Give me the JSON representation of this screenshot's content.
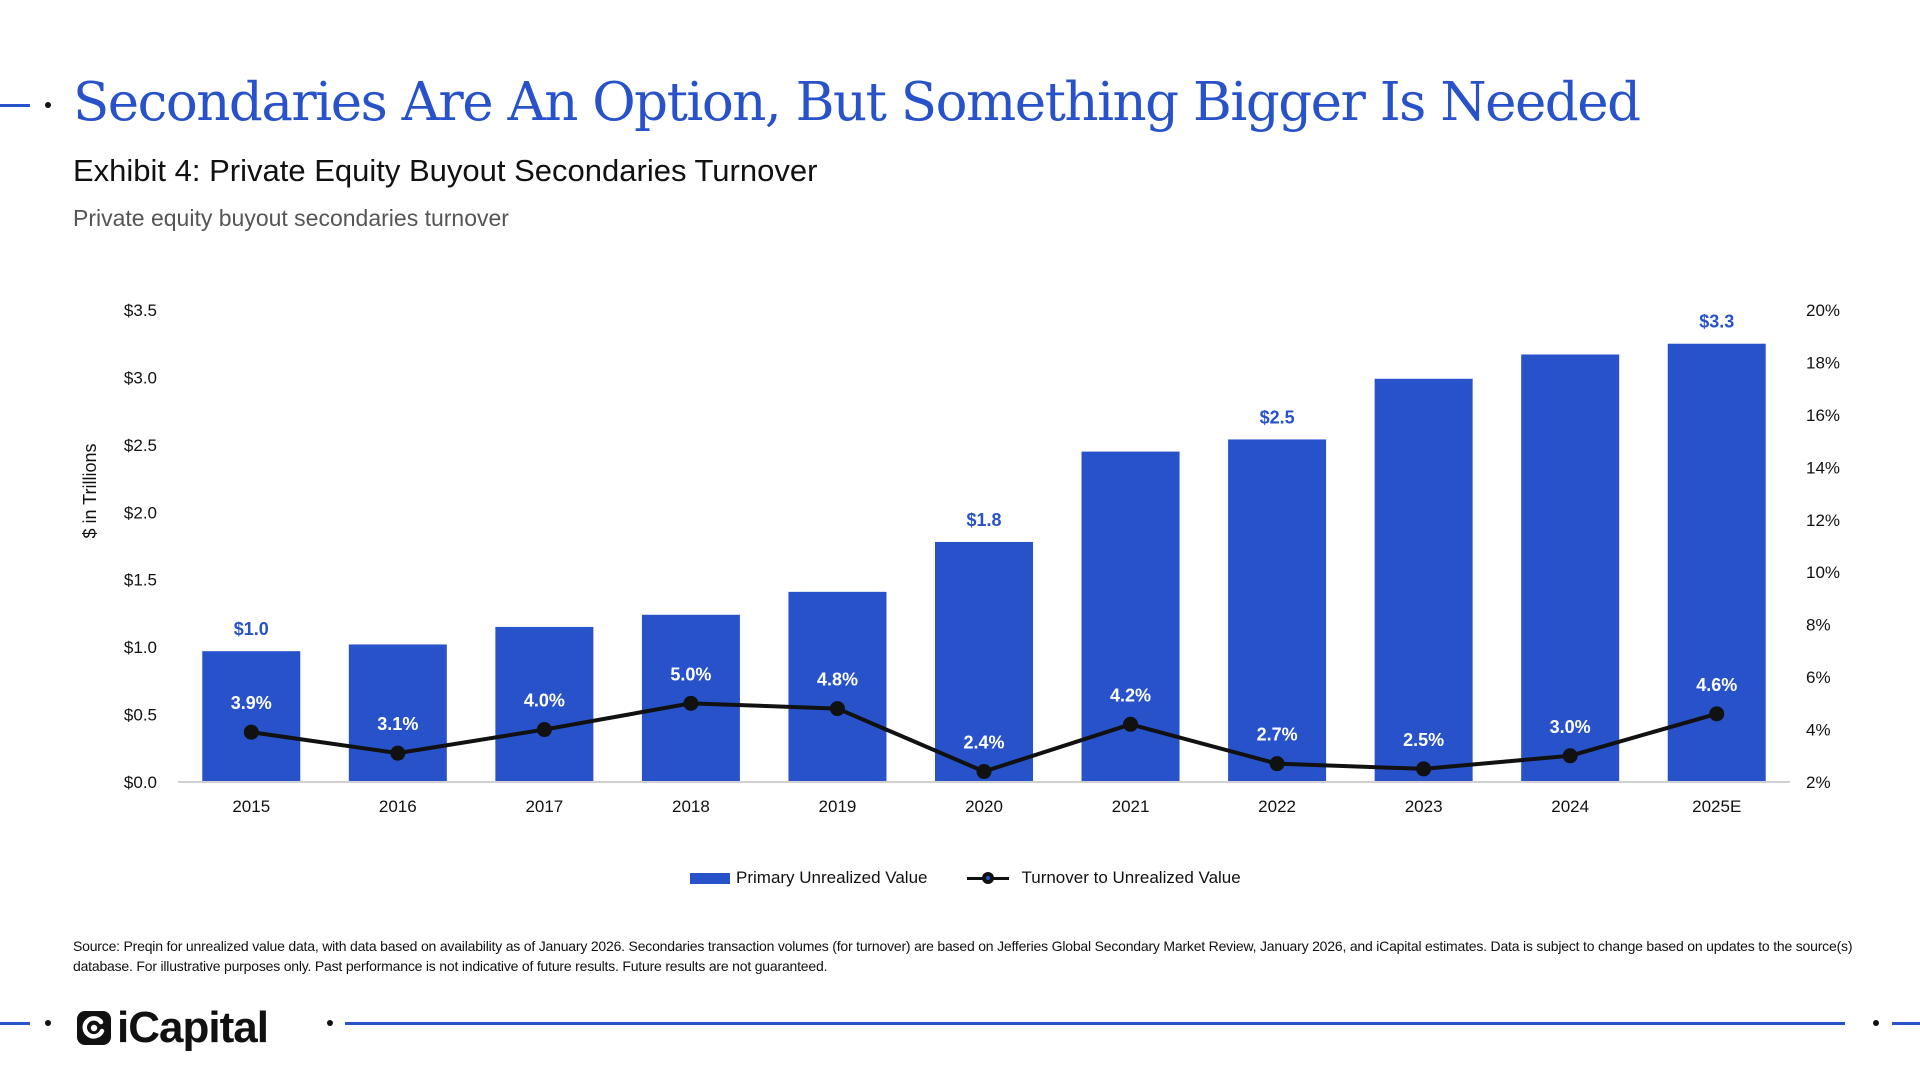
{
  "header": {
    "title": "Secondaries Are An Option, But Something Bigger Is Needed",
    "exhibit": "Exhibit 4: Private Equity Buyout Secondaries Turnover",
    "subtitle": "Private equity buyout secondaries turnover"
  },
  "chart_data": {
    "type": "bar",
    "categories": [
      "2015",
      "2016",
      "2017",
      "2018",
      "2019",
      "2020",
      "2021",
      "2022",
      "2023",
      "2024",
      "2025E"
    ],
    "series": [
      {
        "name": "Primary Unrealized Value",
        "type": "bar",
        "axis": "left",
        "values": [
          0.97,
          1.02,
          1.15,
          1.24,
          1.41,
          1.78,
          2.45,
          2.54,
          2.99,
          3.17,
          3.25
        ]
      },
      {
        "name": "Turnover to Unrealized Value",
        "type": "line",
        "axis": "right",
        "values": [
          3.9,
          3.1,
          4.0,
          5.0,
          4.8,
          2.4,
          4.2,
          2.7,
          2.5,
          3.0,
          4.6
        ]
      }
    ],
    "bar_labels": [
      {
        "index": 0,
        "text": "$1.0"
      },
      {
        "index": 5,
        "text": "$1.8"
      },
      {
        "index": 7,
        "text": "$2.5"
      },
      {
        "index": 10,
        "text": "$3.3"
      }
    ],
    "line_labels": [
      "3.9%",
      "3.1%",
      "4.0%",
      "5.0%",
      "4.8%",
      "2.4%",
      "4.2%",
      "2.7%",
      "2.5%",
      "3.0%",
      "4.6%"
    ],
    "ylabel": "$ in Trillions",
    "ylim": [
      0,
      3.5
    ],
    "yticks": [
      {
        "value": 0,
        "label": "$0.0"
      },
      {
        "value": 0.5,
        "label": "$0.5"
      },
      {
        "value": 1.0,
        "label": "$1.0"
      },
      {
        "value": 1.5,
        "label": "$1.5"
      },
      {
        "value": 2.0,
        "label": "$2.0"
      },
      {
        "value": 2.5,
        "label": "$2.5"
      },
      {
        "value": 3.0,
        "label": "$3.0"
      },
      {
        "value": 3.5,
        "label": "$3.5"
      }
    ],
    "y2lim": [
      2,
      20
    ],
    "y2ticks": [
      {
        "value": 2,
        "label": "2%"
      },
      {
        "value": 4,
        "label": "4%"
      },
      {
        "value": 6,
        "label": "6%"
      },
      {
        "value": 8,
        "label": "8%"
      },
      {
        "value": 10,
        "label": "10%"
      },
      {
        "value": 12,
        "label": "12%"
      },
      {
        "value": 14,
        "label": "14%"
      },
      {
        "value": 16,
        "label": "16%"
      },
      {
        "value": 18,
        "label": "18%"
      },
      {
        "value": 20,
        "label": "20%"
      }
    ],
    "grid": false,
    "legend_position": "bottom-center",
    "colors": {
      "bar": "#2752c9",
      "bar_label": "#2752c9",
      "line": "#111111",
      "line_label": "#ffffff"
    }
  },
  "legend": {
    "bar_label": "Primary Unrealized Value",
    "line_label": "Turnover to Unrealized Value"
  },
  "source_text": "Source: Preqin for unrealized value data, with data based on availability as of January 2026. Secondaries transaction volumes (for turnover) are based on Jefferies Global Secondary Market Review, January 2026, and iCapital estimates. Data is subject to change based on updates to the source(s) database. For illustrative purposes only. Past performance is not indicative of future results. Future results are not guaranteed.",
  "footer": {
    "logo_text": "iCapital",
    "logo_icon": "icapital-logo-mark"
  },
  "colors": {
    "accent": "#2752c9",
    "text": "#111111",
    "muted": "#555555"
  }
}
